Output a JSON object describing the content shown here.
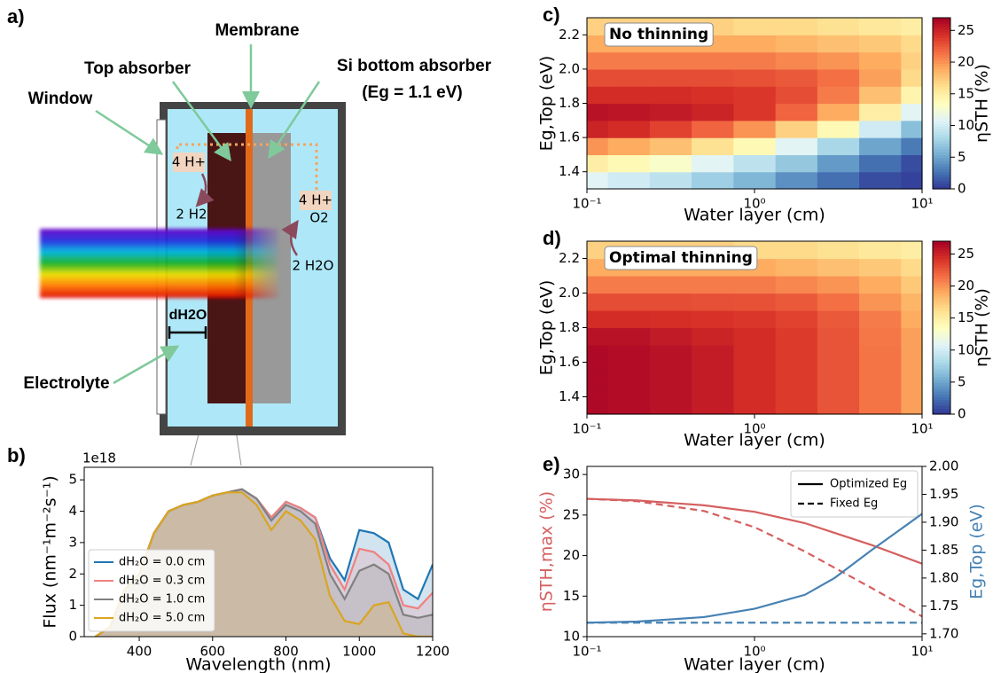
{
  "panel_labels": [
    "a)",
    "b)",
    "c)",
    "d)",
    "e)"
  ],
  "diagram": {
    "membrane": "Membrane",
    "top_absorber": "Top absorber",
    "si_absorber": "Si bottom absorber",
    "si_gap": "(Eg = 1.1 eV)",
    "window": "Window",
    "h_left": "4 H+",
    "h2": "2 H2",
    "h_right": "4 H+",
    "o2": "O2",
    "h2o": "2 H2O",
    "d_h2o": "dH2O",
    "electrolyte": "Electrolyte"
  },
  "chart_data": [
    {
      "type": "line",
      "xlabel": "Wavelength (nm)",
      "ylabel": "Flux (nm⁻¹m⁻²s⁻¹)",
      "offset_label": "1e18",
      "x": [
        280,
        320,
        360,
        400,
        440,
        480,
        520,
        560,
        600,
        640,
        680,
        720,
        760,
        800,
        840,
        880,
        920,
        960,
        1000,
        1040,
        1080,
        1120,
        1160,
        1200
      ],
      "series": [
        {
          "name": "dH₂O = 0.0 cm",
          "color": "#1f77b4",
          "values": [
            0,
            0.3,
            1.5,
            2.0,
            3.3,
            4.0,
            4.2,
            4.3,
            4.5,
            4.6,
            4.7,
            4.4,
            3.8,
            4.3,
            4.1,
            3.8,
            2.5,
            1.8,
            3.4,
            3.3,
            3.0,
            1.5,
            1.2,
            2.3
          ]
        },
        {
          "name": "dH₂O = 0.3 cm",
          "color": "#f08080",
          "values": [
            0,
            0.3,
            1.5,
            2.0,
            3.3,
            4.0,
            4.2,
            4.3,
            4.5,
            4.6,
            4.7,
            4.4,
            3.8,
            4.3,
            4.1,
            3.8,
            2.3,
            1.5,
            2.8,
            2.7,
            2.3,
            1.0,
            0.9,
            1.4
          ]
        },
        {
          "name": "dH₂O = 1.0 cm",
          "color": "#808080",
          "values": [
            0,
            0.3,
            1.5,
            2.0,
            3.3,
            4.0,
            4.2,
            4.3,
            4.5,
            4.6,
            4.7,
            4.4,
            3.7,
            4.2,
            4.0,
            3.6,
            2.0,
            1.2,
            2.1,
            2.3,
            2.0,
            0.7,
            0.6,
            0.7
          ]
        },
        {
          "name": "dH₂O = 5.0 cm",
          "color": "#daa520",
          "values": [
            0,
            0.3,
            1.5,
            2.0,
            3.3,
            4.0,
            4.2,
            4.3,
            4.5,
            4.6,
            4.6,
            4.2,
            3.4,
            4.0,
            3.7,
            3.1,
            1.3,
            0.5,
            0.4,
            1.0,
            1.1,
            0.1,
            0,
            0
          ]
        }
      ],
      "fill_area": true,
      "legend": "lower left",
      "xlim": [
        250,
        1200
      ],
      "xticks": [
        400,
        600,
        800,
        1000,
        1200
      ],
      "ylim": [
        0,
        5.4
      ],
      "yticks": [
        0,
        1,
        2,
        3,
        4,
        5
      ]
    },
    {
      "type": "heatmap",
      "annotation": "No thinning",
      "xlabel": "Water layer (cm)",
      "ylabel": "Eg,Top (eV)",
      "colorbar_label": "ηSTH (%)",
      "xscale": "log",
      "x": [
        0.1,
        0.178,
        0.316,
        0.562,
        1,
        1.78,
        3.16,
        5.62,
        10
      ],
      "y": [
        1.35,
        1.45,
        1.55,
        1.65,
        1.75,
        1.85,
        1.95,
        2.05,
        2.15,
        2.25
      ],
      "z": [
        [
          11,
          10,
          9,
          7.5,
          6,
          4,
          2.5,
          1,
          0.5
        ],
        [
          15,
          14,
          13,
          11,
          9,
          7,
          4.5,
          2.5,
          1
        ],
        [
          20,
          19,
          18,
          16,
          14,
          11,
          8,
          5,
          3
        ],
        [
          25,
          24.5,
          23.5,
          22,
          20,
          17,
          14,
          10,
          6.5
        ],
        [
          26,
          25.8,
          25.5,
          25,
          24,
          22,
          19,
          15,
          11
        ],
        [
          24.5,
          24.5,
          24.5,
          24.3,
          24,
          23,
          21,
          18,
          14.5
        ],
        [
          23,
          23,
          23,
          23,
          22.8,
          22.5,
          21.5,
          19.5,
          16.5
        ],
        [
          21,
          21,
          21,
          21,
          21,
          20.5,
          20,
          19,
          17
        ],
        [
          19,
          19,
          19,
          19,
          19,
          18.5,
          18,
          17.5,
          16.5
        ],
        [
          17,
          17,
          17,
          17,
          16.5,
          16.5,
          16,
          15.5,
          15
        ]
      ],
      "xlim": [
        0.1,
        10
      ],
      "xticks": [
        {
          "value": 0.1,
          "label": "10⁻¹"
        },
        {
          "value": 1,
          "label": "10⁰"
        },
        {
          "value": 10,
          "label": "10¹"
        }
      ],
      "ylim": [
        1.3,
        2.3
      ],
      "yticks": [
        1.4,
        1.6,
        1.8,
        {
          "value": 2,
          "label": "2.0"
        },
        2.2
      ],
      "clim": [
        0,
        27
      ],
      "cticks": [
        0,
        5,
        10,
        15,
        20,
        25
      ],
      "colormap": [
        "#313695",
        "#4575b4",
        "#74add1",
        "#abd9e9",
        "#e0f3f8",
        "#ffffbf",
        "#fee090",
        "#fdae61",
        "#f46d43",
        "#d73027",
        "#a50026"
      ]
    },
    {
      "type": "heatmap",
      "annotation": "Optimal thinning",
      "xlabel": "Water layer (cm)",
      "ylabel": "Eg,Top (eV)",
      "colorbar_label": "ηSTH (%)",
      "xscale": "log",
      "x": [
        0.1,
        0.178,
        0.316,
        0.562,
        1,
        1.78,
        3.16,
        5.62,
        10
      ],
      "y": [
        1.35,
        1.45,
        1.55,
        1.65,
        1.75,
        1.85,
        1.95,
        2.05,
        2.15,
        2.25
      ],
      "z": [
        [
          26.5,
          26.3,
          26,
          25.4,
          24.5,
          23.8,
          22.7,
          21.3,
          19.5
        ],
        [
          26.5,
          26.3,
          26,
          25.4,
          24.5,
          23.8,
          22.7,
          21.3,
          19.5
        ],
        [
          26.5,
          26.3,
          26,
          25.4,
          24.5,
          23.8,
          22.7,
          21.3,
          19.5
        ],
        [
          26.5,
          26.3,
          26,
          25.4,
          24.5,
          23.8,
          22.7,
          21.3,
          19.5
        ],
        [
          26,
          26,
          25.5,
          25,
          24.5,
          23.8,
          22.7,
          21.2,
          19.5
        ],
        [
          24.5,
          24.5,
          24.4,
          24.2,
          24,
          23.5,
          22.5,
          21,
          19
        ],
        [
          23,
          23,
          23,
          22.9,
          22.8,
          22.5,
          21.5,
          20,
          18.5
        ],
        [
          21,
          21,
          21,
          21,
          21,
          20.5,
          20,
          19,
          17.5
        ],
        [
          19,
          19,
          19,
          19,
          19,
          18.5,
          18,
          17.5,
          16.5
        ],
        [
          17,
          17,
          17,
          17,
          16.5,
          16.5,
          16,
          15.5,
          15
        ]
      ],
      "xlim": [
        0.1,
        10
      ],
      "xticks": [
        {
          "value": 0.1,
          "label": "10⁻¹"
        },
        {
          "value": 1,
          "label": "10⁰"
        },
        {
          "value": 10,
          "label": "10¹"
        }
      ],
      "ylim": [
        1.3,
        2.3
      ],
      "yticks": [
        1.4,
        1.6,
        1.8,
        {
          "value": 2,
          "label": "2.0"
        },
        2.2
      ],
      "clim": [
        0,
        27
      ],
      "cticks": [
        0,
        5,
        10,
        15,
        20,
        25
      ],
      "colormap": [
        "#313695",
        "#4575b4",
        "#74add1",
        "#abd9e9",
        "#e0f3f8",
        "#ffffbf",
        "#fee090",
        "#fdae61",
        "#f46d43",
        "#d73027",
        "#a50026"
      ]
    },
    {
      "type": "line",
      "xlabel": "Water layer (cm)",
      "ylabel": "ηSTH,max (%)",
      "y2label": "Eg,Top (eV)",
      "ylabel_color": "#d65f5f",
      "y2label_color": "#4682b4",
      "xscale": "log",
      "x": [
        0.1,
        0.2,
        0.5,
        1,
        2,
        3,
        5,
        10
      ],
      "series": [
        {
          "color": "#d65f5f",
          "dash": false,
          "values": [
            27,
            26.8,
            26.2,
            25.4,
            24,
            22.8,
            21.3,
            19
          ]
        },
        {
          "color": "#d65f5f",
          "dash": true,
          "values": [
            27,
            26.7,
            25.5,
            23.5,
            20.5,
            18.5,
            16,
            12.5
          ]
        },
        {
          "color": "#4682b4",
          "dash": false,
          "axis": "y2",
          "values": [
            1.72,
            1.722,
            1.73,
            1.745,
            1.77,
            1.8,
            1.85,
            1.915
          ]
        },
        {
          "color": "#4682b4",
          "dash": true,
          "axis": "y2",
          "values": [
            1.72,
            1.72,
            1.72,
            1.72,
            1.72,
            1.72,
            1.72,
            1.72
          ]
        }
      ],
      "legend": "upper right",
      "legend_color": "#000000",
      "legend_entries": [
        {
          "name": "Optimized Eg",
          "dash": false
        },
        {
          "name": "Fixed Eg",
          "dash": true
        }
      ],
      "xlim": [
        0.1,
        10
      ],
      "xticks": [
        {
          "value": 0.1,
          "label": "10⁻¹"
        },
        {
          "value": 1,
          "label": "10⁰"
        },
        {
          "value": 10,
          "label": "10¹"
        }
      ],
      "ylim": [
        10,
        31
      ],
      "yticks": [
        10,
        15,
        20,
        25,
        30
      ],
      "y2lim": [
        1.695,
        2.0
      ],
      "y2ticks": [
        {
          "value": 1.7,
          "label": "1.70"
        },
        {
          "value": 1.75,
          "label": "1.75"
        },
        {
          "value": 1.8,
          "label": "1.80"
        },
        {
          "value": 1.85,
          "label": "1.85"
        },
        {
          "value": 1.9,
          "label": "1.90"
        },
        {
          "value": 1.95,
          "label": "1.95"
        },
        {
          "value": 2,
          "label": "2.00"
        }
      ]
    }
  ]
}
